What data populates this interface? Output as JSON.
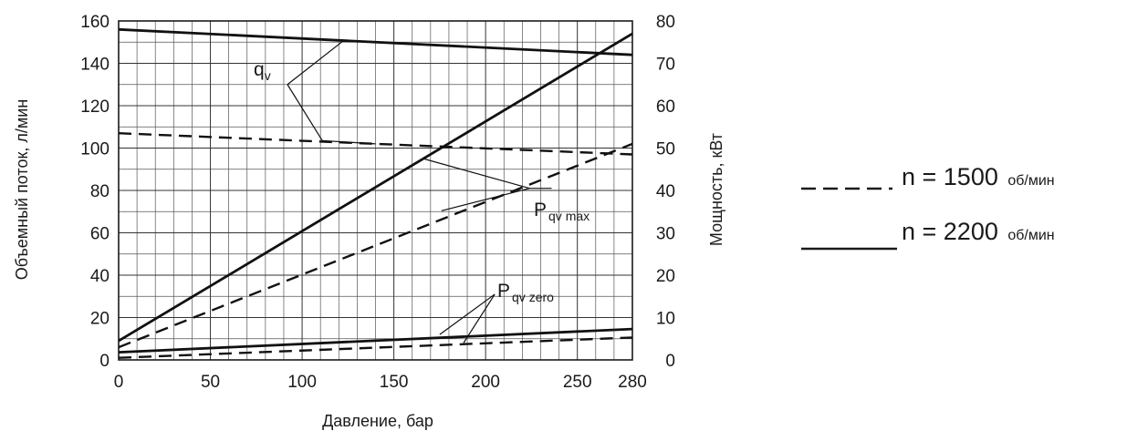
{
  "chart_data": {
    "type": "line",
    "xlabel": "Давление, бар",
    "ylabel_left": "Объемный поток, л/мин",
    "ylabel_right": "Мощность, кВт",
    "xlim": [
      0,
      280
    ],
    "ylim_left": [
      0,
      160
    ],
    "ylim_right": [
      0,
      80
    ],
    "x_ticks": [
      "0",
      "50",
      "100",
      "150",
      "200",
      "250",
      "280"
    ],
    "y_left_ticks": [
      "0",
      "20",
      "40",
      "60",
      "80",
      "100",
      "120",
      "140",
      "160"
    ],
    "y_right_ticks": [
      "0",
      "10",
      "20",
      "30",
      "40",
      "50",
      "60",
      "70",
      "80"
    ],
    "grid": true,
    "series": [
      {
        "name": "q",
        "sub": "v",
        "axis": "left",
        "style": "solid",
        "x": [
          0,
          280
        ],
        "y": [
          156,
          144
        ]
      },
      {
        "name": "q",
        "sub": "v",
        "axis": "left",
        "style": "dashed",
        "x": [
          0,
          280
        ],
        "y": [
          107,
          97
        ]
      },
      {
        "name": "P",
        "sub": "qv max",
        "axis": "right",
        "style": "solid",
        "x": [
          0,
          280
        ],
        "y": [
          4.5,
          77
        ]
      },
      {
        "name": "P",
        "sub": "qv max",
        "axis": "right",
        "style": "dashed",
        "x": [
          0,
          280
        ],
        "y": [
          3,
          51
        ]
      },
      {
        "name": "P",
        "sub": "qv zero",
        "axis": "right",
        "style": "solid",
        "x": [
          0,
          280
        ],
        "y": [
          1.8,
          7.3
        ]
      },
      {
        "name": "P",
        "sub": "qv zero",
        "axis": "right",
        "style": "dashed",
        "x": [
          0,
          280
        ],
        "y": [
          0.5,
          5.3
        ]
      }
    ],
    "annotations": [
      {
        "label": "q",
        "sub": "v"
      },
      {
        "label": "P",
        "sub": "qv max"
      },
      {
        "label": "P",
        "sub": "qv zero"
      }
    ],
    "legend_position": "right",
    "legend": [
      {
        "style": "dashed",
        "n_text": "n = 1500",
        "unit": "об/мин"
      },
      {
        "style": "solid",
        "n_text": "n = 2200",
        "unit": "об/мин"
      }
    ]
  }
}
